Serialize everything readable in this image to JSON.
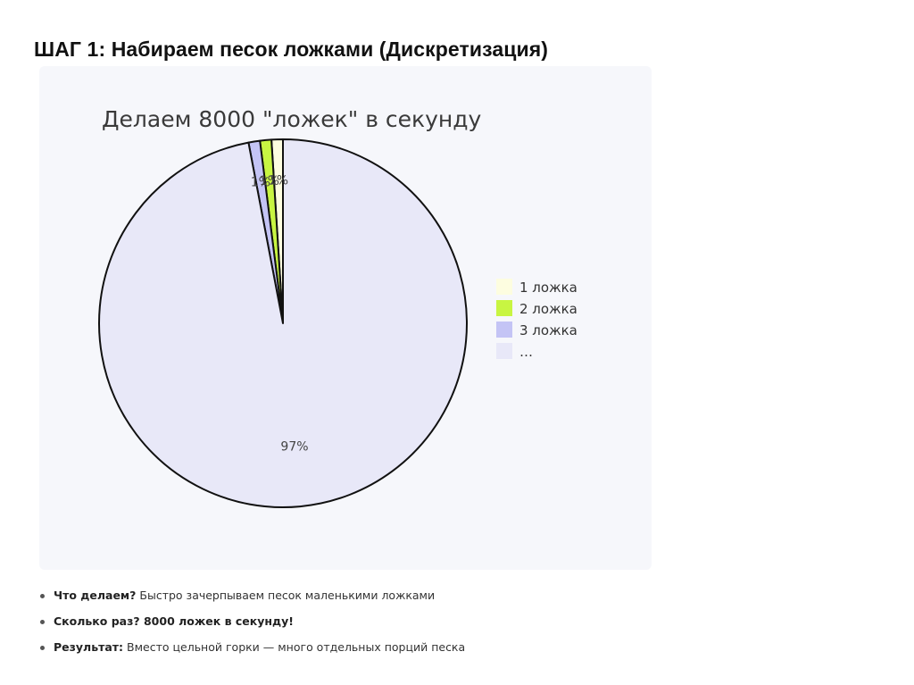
{
  "slide": {
    "title": "ШАГ 1: Набираем песок ложками (Дискретизация)"
  },
  "chart_data": {
    "type": "pie",
    "title": "Делаем 8000 \"ложек\" в секунду",
    "slices": [
      {
        "name": "1 ложка",
        "value": 1,
        "label": "1%",
        "color": "#fdfde0"
      },
      {
        "name": "2 ложка",
        "value": 1,
        "label": "1%",
        "color": "#c8f542"
      },
      {
        "name": "3 ложка",
        "value": 1,
        "label": "1%",
        "color": "#c4c4f5"
      },
      {
        "name": "…",
        "value": 97,
        "label": "97%",
        "color": "#e8e8f8"
      }
    ],
    "legend_position": "right"
  },
  "bullets": [
    {
      "label": "Что делаем?",
      "text": "Быстро зачерпываем песок маленькими ложками"
    },
    {
      "label": "Сколько раз? 8000 ложек в секунду!",
      "text": ""
    },
    {
      "label": "Результат:",
      "text": "Вместо цельной горки — много отдельных порций песка"
    }
  ]
}
